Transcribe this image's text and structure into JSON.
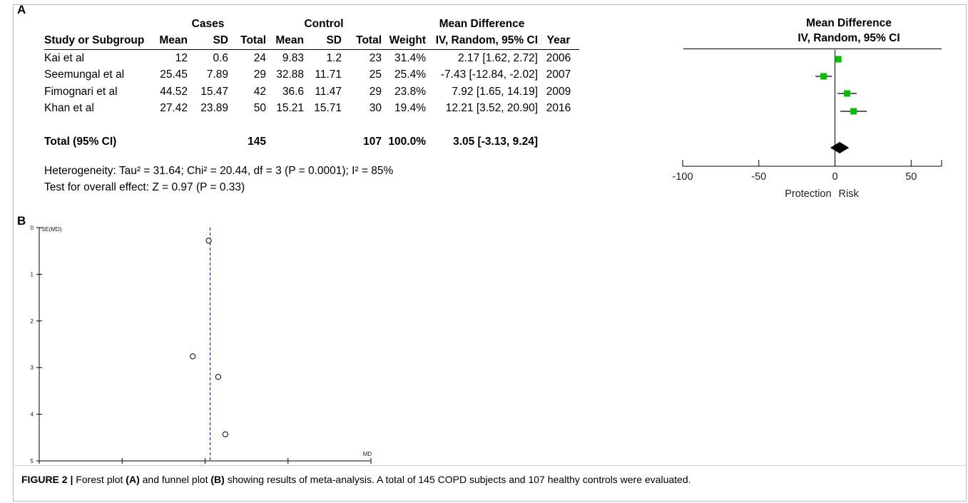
{
  "panels": {
    "a": "A",
    "b": "B"
  },
  "table": {
    "group_headers": {
      "cases": "Cases",
      "control": "Control",
      "mean_difference": "Mean Difference"
    },
    "columns": [
      "Study or Subgroup",
      "Mean",
      "SD",
      "Total",
      "Mean",
      "SD",
      "Total",
      "Weight",
      "IV, Random, 95% CI",
      "Year"
    ],
    "rows": [
      {
        "study": "Kai et al",
        "cases_mean": "12",
        "cases_sd": "0.6",
        "cases_total": "24",
        "control_mean": "9.83",
        "control_sd": "1.2",
        "control_total": "23",
        "weight": "31.4%",
        "ci": "2.17 [1.62, 2.72]",
        "year": "2006"
      },
      {
        "study": "Seemungal et al",
        "cases_mean": "25.45",
        "cases_sd": "7.89",
        "cases_total": "29",
        "control_mean": "32.88",
        "control_sd": "11.71",
        "control_total": "25",
        "weight": "25.4%",
        "ci": "-7.43 [-12.84, -2.02]",
        "year": "2007"
      },
      {
        "study": "Fimognari et al",
        "cases_mean": "44.52",
        "cases_sd": "15.47",
        "cases_total": "42",
        "control_mean": "36.6",
        "control_sd": "11.47",
        "control_total": "29",
        "weight": "23.8%",
        "ci": "7.92 [1.65, 14.19]",
        "year": "2009"
      },
      {
        "study": "Khan et al",
        "cases_mean": "27.42",
        "cases_sd": "23.89",
        "cases_total": "50",
        "control_mean": "15.21",
        "control_sd": "15.71",
        "control_total": "30",
        "weight": "19.4%",
        "ci": "12.21 [3.52, 20.90]",
        "year": "2016"
      }
    ],
    "total": {
      "label": "Total (95% CI)",
      "cases_total": "145",
      "control_total": "107",
      "weight": "100.0%",
      "ci": "3.05 [-3.13, 9.24]"
    },
    "heterogeneity": "Heterogeneity: Tau² = 31.64; Chi² = 20.44, df = 3 (P = 0.0001); I² = 85%",
    "overall_effect": "Test for overall effect: Z = 0.97 (P = 0.33)"
  },
  "caption": {
    "label": "FIGURE 2 |",
    "text_1": " Forest plot ",
    "a": "(A)",
    "text_2": " and funnel plot ",
    "b": "(B)",
    "text_3": " showing results of meta-analysis. A total of 145 COPD subjects and 107 healthy controls were evaluated."
  },
  "colors": {
    "study_marker": "#00c000",
    "pooled_marker": "#000000",
    "funnel_line": "#0000ff"
  },
  "chart_data": [
    {
      "type": "forest",
      "header": [
        "Mean Difference",
        "IV, Random, 95% CI"
      ],
      "studies": [
        {
          "name": "Kai et al",
          "md": 2.17,
          "lo": 1.62,
          "hi": 2.72,
          "weight": 31.4
        },
        {
          "name": "Seemungal et al",
          "md": -7.43,
          "lo": -12.84,
          "hi": -2.02,
          "weight": 25.4
        },
        {
          "name": "Fimognari et al",
          "md": 7.92,
          "lo": 1.65,
          "hi": 14.19,
          "weight": 23.8
        },
        {
          "name": "Khan et al",
          "md": 12.21,
          "lo": 3.52,
          "hi": 20.9,
          "weight": 19.4
        }
      ],
      "pooled": {
        "md": 3.05,
        "lo": -3.13,
        "hi": 9.24
      },
      "xlim": [
        -100,
        70
      ],
      "xticks": [
        -100,
        -50,
        0,
        50
      ],
      "xtick_labels": [
        "-100",
        "-50",
        "0",
        "50"
      ],
      "direction_labels": [
        "Protection",
        "Risk"
      ]
    },
    {
      "type": "scatter",
      "subtype": "funnel",
      "xlabel": "MD",
      "ylabel": "SE(MD)",
      "xlim": [
        -100,
        100
      ],
      "ylim": [
        5,
        0
      ],
      "xticks": [
        -100,
        -50,
        0,
        50,
        100
      ],
      "yticks": [
        0,
        1,
        2,
        3,
        4,
        5
      ],
      "reference_line_x": 3.05,
      "points": [
        {
          "x": 2.17,
          "y": 0.28
        },
        {
          "x": -7.43,
          "y": 2.76
        },
        {
          "x": 7.92,
          "y": 3.2
        },
        {
          "x": 12.21,
          "y": 4.43
        }
      ]
    }
  ]
}
